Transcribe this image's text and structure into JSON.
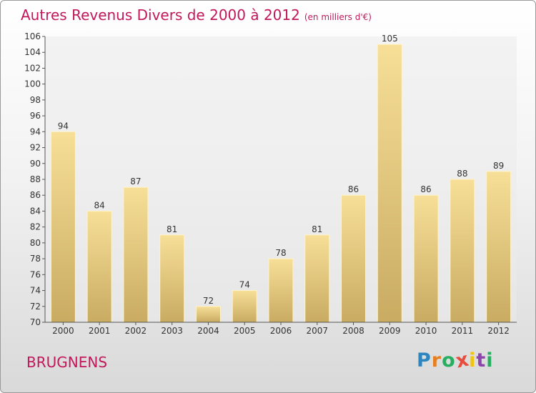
{
  "title": "Autres Revenus Divers de 2000 à 2012",
  "subtitle": "(en milliers d'€)",
  "commune": "BRUGNENS",
  "logo": {
    "letters": [
      "P",
      "r",
      "o",
      "x",
      "i",
      "t",
      "i"
    ],
    "colors": [
      "#2e86c1",
      "#e67e22",
      "#27ae60",
      "#e74c3c",
      "#f1c40f",
      "#8e44ad",
      "#27ae60"
    ]
  },
  "chart_data": {
    "type": "bar",
    "title": "Autres Revenus Divers de 2000 à 2012",
    "xlabel": "",
    "ylabel": "",
    "categories": [
      "2000",
      "2001",
      "2002",
      "2003",
      "2004",
      "2005",
      "2006",
      "2007",
      "2008",
      "2009",
      "2010",
      "2011",
      "2012"
    ],
    "values": [
      94,
      84,
      87,
      81,
      72,
      74,
      78,
      81,
      86,
      105,
      86,
      88,
      89
    ],
    "ylim": [
      70,
      106
    ],
    "yticks": [
      70,
      72,
      74,
      76,
      78,
      80,
      82,
      84,
      86,
      88,
      90,
      92,
      94,
      96,
      98,
      100,
      102,
      104,
      106
    ],
    "grid": false,
    "bar_color": "#dcc27c"
  }
}
